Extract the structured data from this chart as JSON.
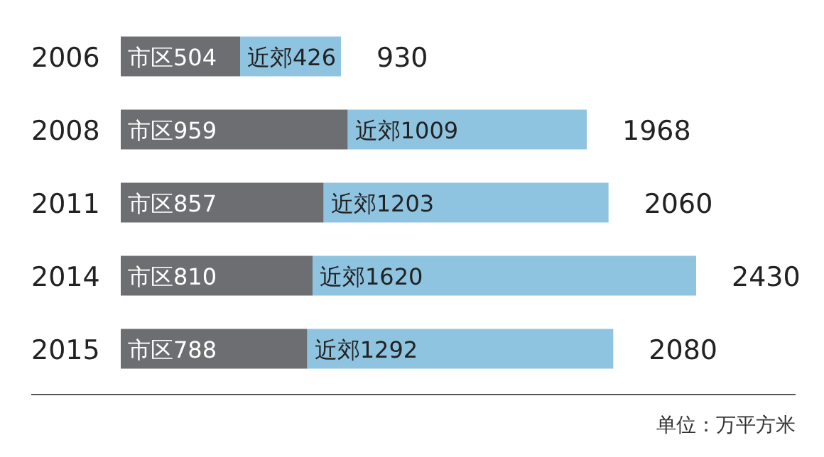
{
  "chart_data": {
    "type": "bar",
    "orientation": "horizontal",
    "stacked": true,
    "categories": [
      "2006",
      "2008",
      "2011",
      "2014",
      "2015"
    ],
    "series": [
      {
        "color": "#6d6e71",
        "values": [
          504,
          959,
          857,
          810,
          788
        ],
        "value_labels": [
          "市区504",
          "市区959",
          "市区857",
          "市区810",
          "市区788"
        ]
      },
      {
        "color": "#8fc4e1",
        "values": [
          426,
          1009,
          1203,
          1620,
          1292
        ],
        "value_labels": [
          "近郊426",
          "近郊1009",
          "近郊1203",
          "近郊1620",
          "近郊1292"
        ]
      }
    ],
    "totals": [
      "930",
      "1968",
      "2060",
      "2430",
      "2080"
    ],
    "annotations": [
      "单位：万平方米"
    ]
  }
}
